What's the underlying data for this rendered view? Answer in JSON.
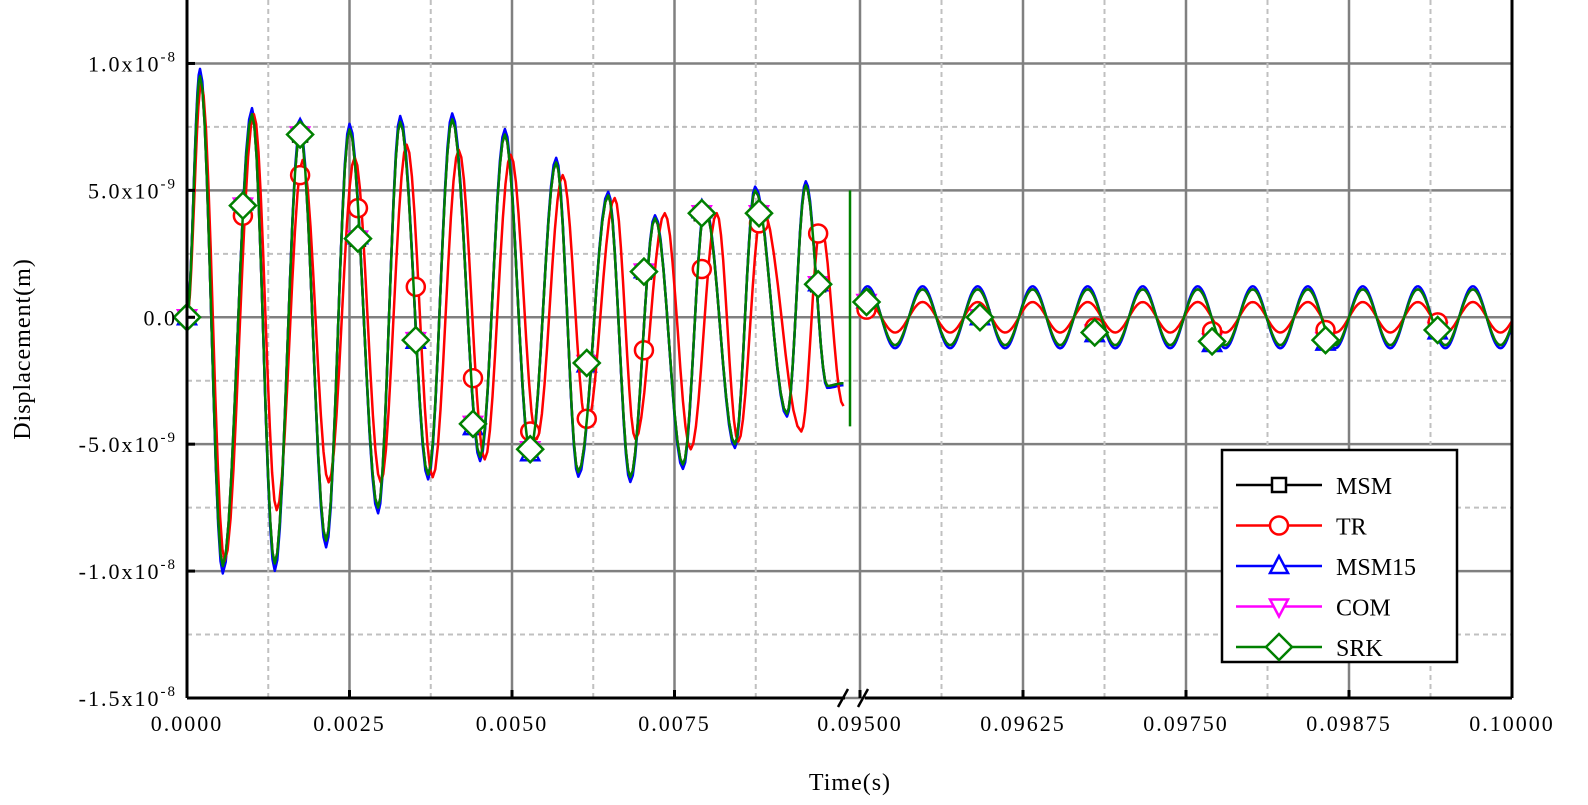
{
  "chart_data": {
    "type": "line",
    "title": "",
    "xlabel": "Time(s)",
    "ylabel": "Displacement(m)",
    "ylim": [
      -1.5e-08,
      1.25e-08
    ],
    "x_axis_broken": true,
    "x_segments": [
      {
        "xlim": [
          0.0,
          0.0102
        ],
        "ticks": [
          0.0,
          0.0025,
          0.005,
          0.0075
        ],
        "tick_labels": [
          "0.0000",
          "0.0025",
          "0.0050",
          "0.0075"
        ]
      },
      {
        "xlim": [
          0.095,
          0.1
        ],
        "ticks": [
          0.095,
          0.09625,
          0.0975,
          0.09875,
          0.1
        ],
        "tick_labels": [
          "0.09500",
          "0.09625",
          "0.09750",
          "0.09875",
          "0.10000"
        ]
      }
    ],
    "yticks": [
      {
        "value": 1e-08,
        "base": "1.0x10",
        "exp": "-8"
      },
      {
        "value": 5e-09,
        "base": "5.0x10",
        "exp": "-9"
      },
      {
        "value": 0.0,
        "base": "0.0",
        "exp": ""
      },
      {
        "value": -5e-09,
        "base": "-5.0x10",
        "exp": "-9"
      },
      {
        "value": -1e-08,
        "base": "-1.0x10",
        "exp": "-8"
      },
      {
        "value": -1.5e-08,
        "base": "-1.5x10",
        "exp": "-8"
      }
    ],
    "grid": true,
    "legend_position": "bottom-right",
    "series": [
      {
        "name": "MSM",
        "color": "#000000",
        "marker": "square",
        "base": "SRK",
        "scale": 1.0,
        "right_amplitude": 1.1e-09
      },
      {
        "name": "TR",
        "color": "#ff0000",
        "marker": "circle",
        "extrema": [
          [
            0,
            0
          ],
          [
            0.00022,
            9.2e-09
          ],
          [
            0.00058,
            -9.6e-09
          ],
          [
            0.00103,
            8e-09
          ],
          [
            0.00138,
            -7.6e-09
          ],
          [
            0.00178,
            6.2e-09
          ],
          [
            0.00218,
            -6.5e-09
          ],
          [
            0.00258,
            6.3e-09
          ],
          [
            0.00298,
            -6.5e-09
          ],
          [
            0.00338,
            6.8e-09
          ],
          [
            0.00378,
            -6.3e-09
          ],
          [
            0.00418,
            6.6e-09
          ],
          [
            0.00458,
            -5.6e-09
          ],
          [
            0.00498,
            6.4e-09
          ],
          [
            0.00538,
            -4.8e-09
          ],
          [
            0.00578,
            5.6e-09
          ],
          [
            0.00615,
            -4.3e-09
          ],
          [
            0.00658,
            4.7e-09
          ],
          [
            0.0069,
            -4.8e-09
          ],
          [
            0.00735,
            4.1e-09
          ],
          [
            0.00775,
            -5.2e-09
          ],
          [
            0.00815,
            4.1e-09
          ],
          [
            0.00848,
            -4.9e-09
          ],
          [
            0.00885,
            4.3e-09
          ],
          [
            0.00945,
            -4.5e-09
          ],
          [
            0.00975,
            3.6e-09
          ],
          [
            0.0101,
            -3.5e-09
          ]
        ],
        "right_amplitude": 6e-10,
        "markers": [
          [
            0,
            0
          ],
          [
            0.00086,
            4e-09
          ],
          [
            0.00174,
            5.6e-09
          ],
          [
            0.00263,
            4.3e-09
          ],
          [
            0.00352,
            1.2e-09
          ],
          [
            0.0044,
            -2.4e-09
          ],
          [
            0.00528,
            -4.5e-09
          ],
          [
            0.00615,
            -4e-09
          ],
          [
            0.00703,
            -1.3e-09
          ],
          [
            0.00792,
            1.9e-09
          ],
          [
            0.0088,
            3.7e-09
          ],
          [
            0.00971,
            3.3e-09
          ],
          [
            0.09505,
            3e-10
          ],
          [
            0.09592,
            0
          ],
          [
            0.0968,
            -4e-10
          ],
          [
            0.0977,
            -5.5e-10
          ],
          [
            0.09857,
            -5e-10
          ],
          [
            0.09943,
            -2e-10
          ]
        ]
      },
      {
        "name": "MSM15",
        "color": "#0000ff",
        "marker": "triangle-up",
        "base": "SRK",
        "scale": 1.03,
        "right_amplitude": 1.22e-09
      },
      {
        "name": "COM",
        "color": "#ff00ff",
        "marker": "triangle-down",
        "base": "SRK",
        "scale": 1.0,
        "right_amplitude": 1.1e-09
      },
      {
        "name": "SRK",
        "color": "#008000",
        "marker": "diamond",
        "extrema": [
          [
            0,
            0
          ],
          [
            0.0002,
            9.5e-09
          ],
          [
            0.00055,
            -9.8e-09
          ],
          [
            0.001,
            8e-09
          ],
          [
            0.00135,
            -9.7e-09
          ],
          [
            0.00174,
            7.3e-09
          ],
          [
            0.00214,
            -8.8e-09
          ],
          [
            0.0025,
            7.4e-09
          ],
          [
            0.00294,
            -7.5e-09
          ],
          [
            0.00328,
            7.7e-09
          ],
          [
            0.00371,
            -6.2e-09
          ],
          [
            0.00408,
            7.8e-09
          ],
          [
            0.00451,
            -5.5e-09
          ],
          [
            0.00489,
            7.2e-09
          ],
          [
            0.00528,
            -5.3e-09
          ],
          [
            0.00568,
            6.1e-09
          ],
          [
            0.00602,
            -6.1e-09
          ],
          [
            0.00648,
            4.8e-09
          ],
          [
            0.00682,
            -6.3e-09
          ],
          [
            0.0072,
            3.9e-09
          ],
          [
            0.00763,
            -5.8e-09
          ],
          [
            0.00797,
            4.3e-09
          ],
          [
            0.00843,
            -5e-09
          ],
          [
            0.00874,
            5e-09
          ],
          [
            0.00923,
            -3.8e-09
          ],
          [
            0.00952,
            5.2e-09
          ],
          [
            0.00985,
            -2.7e-09
          ],
          [
            0.0101,
            -2.6e-09
          ]
        ],
        "right_amplitude": 1.1e-09,
        "markers": [
          [
            0,
            0
          ],
          [
            0.00086,
            4.4e-09
          ],
          [
            0.00174,
            7.2e-09
          ],
          [
            0.00263,
            3.1e-09
          ],
          [
            0.00352,
            -9e-10
          ],
          [
            0.0044,
            -4.2e-09
          ],
          [
            0.00528,
            -5.2e-09
          ],
          [
            0.00615,
            -1.8e-09
          ],
          [
            0.00703,
            1.8e-09
          ],
          [
            0.00792,
            4.1e-09
          ],
          [
            0.0088,
            4.1e-09
          ],
          [
            0.00971,
            1.3e-09
          ],
          [
            0.09505,
            6e-10
          ],
          [
            0.09592,
            0
          ],
          [
            0.0968,
            -6e-10
          ],
          [
            0.0977,
            -9.5e-10
          ],
          [
            0.09857,
            -9e-10
          ],
          [
            0.09943,
            -5e-10
          ]
        ]
      }
    ],
    "right_segment_oscillation": {
      "peak_time": 0.09548,
      "period": 0.000422
    }
  }
}
